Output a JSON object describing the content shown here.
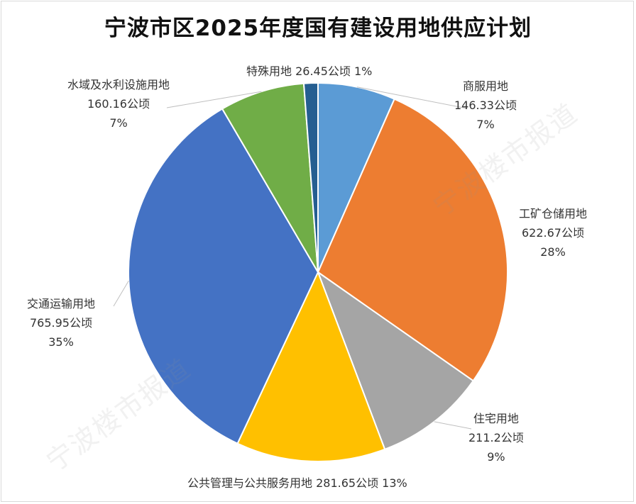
{
  "chart_data": {
    "type": "pie",
    "title": "宁波市区2025年度国有建设用地供应计划",
    "unit": "公顷",
    "slices": [
      {
        "name": "商服用地",
        "value": 146.33,
        "percent": "7%",
        "color": "#5b9bd5"
      },
      {
        "name": "工矿仓储用地",
        "value": 622.67,
        "percent": "28%",
        "color": "#ed7d31"
      },
      {
        "name": "住宅用地",
        "value": 211.2,
        "percent": "9%",
        "color": "#a5a5a5"
      },
      {
        "name": "公共管理与公共服务用地",
        "value": 281.65,
        "percent": "13%",
        "color": "#ffc000"
      },
      {
        "name": "交通运输用地",
        "value": 765.95,
        "percent": "35%",
        "color": "#4472c4"
      },
      {
        "name": "水域及水利设施用地",
        "value": 160.16,
        "percent": "7%",
        "color": "#70ad47"
      },
      {
        "name": "特殊用地",
        "value": 26.45,
        "percent": "1%",
        "color": "#255e91"
      }
    ]
  },
  "labels": {
    "commercial": {
      "name": "商服用地",
      "area": "146.33公顷",
      "pct": "7%"
    },
    "industrial": {
      "name": "工矿仓储用地",
      "area": "622.67公顷",
      "pct": "28%"
    },
    "residential": {
      "name": "住宅用地",
      "area": "211.2公顷",
      "pct": "9%"
    },
    "public": {
      "line": "公共管理与公共服务用地  281.65公顷  13%"
    },
    "transport": {
      "name": "交通运输用地",
      "area": "765.95公顷",
      "pct": "35%"
    },
    "water": {
      "name": "水域及水利设施用地",
      "area": "160.16公顷",
      "pct": "7%"
    },
    "special": {
      "line": "特殊用地  26.45公顷  1%"
    }
  },
  "watermark": "宁波楼市报道"
}
